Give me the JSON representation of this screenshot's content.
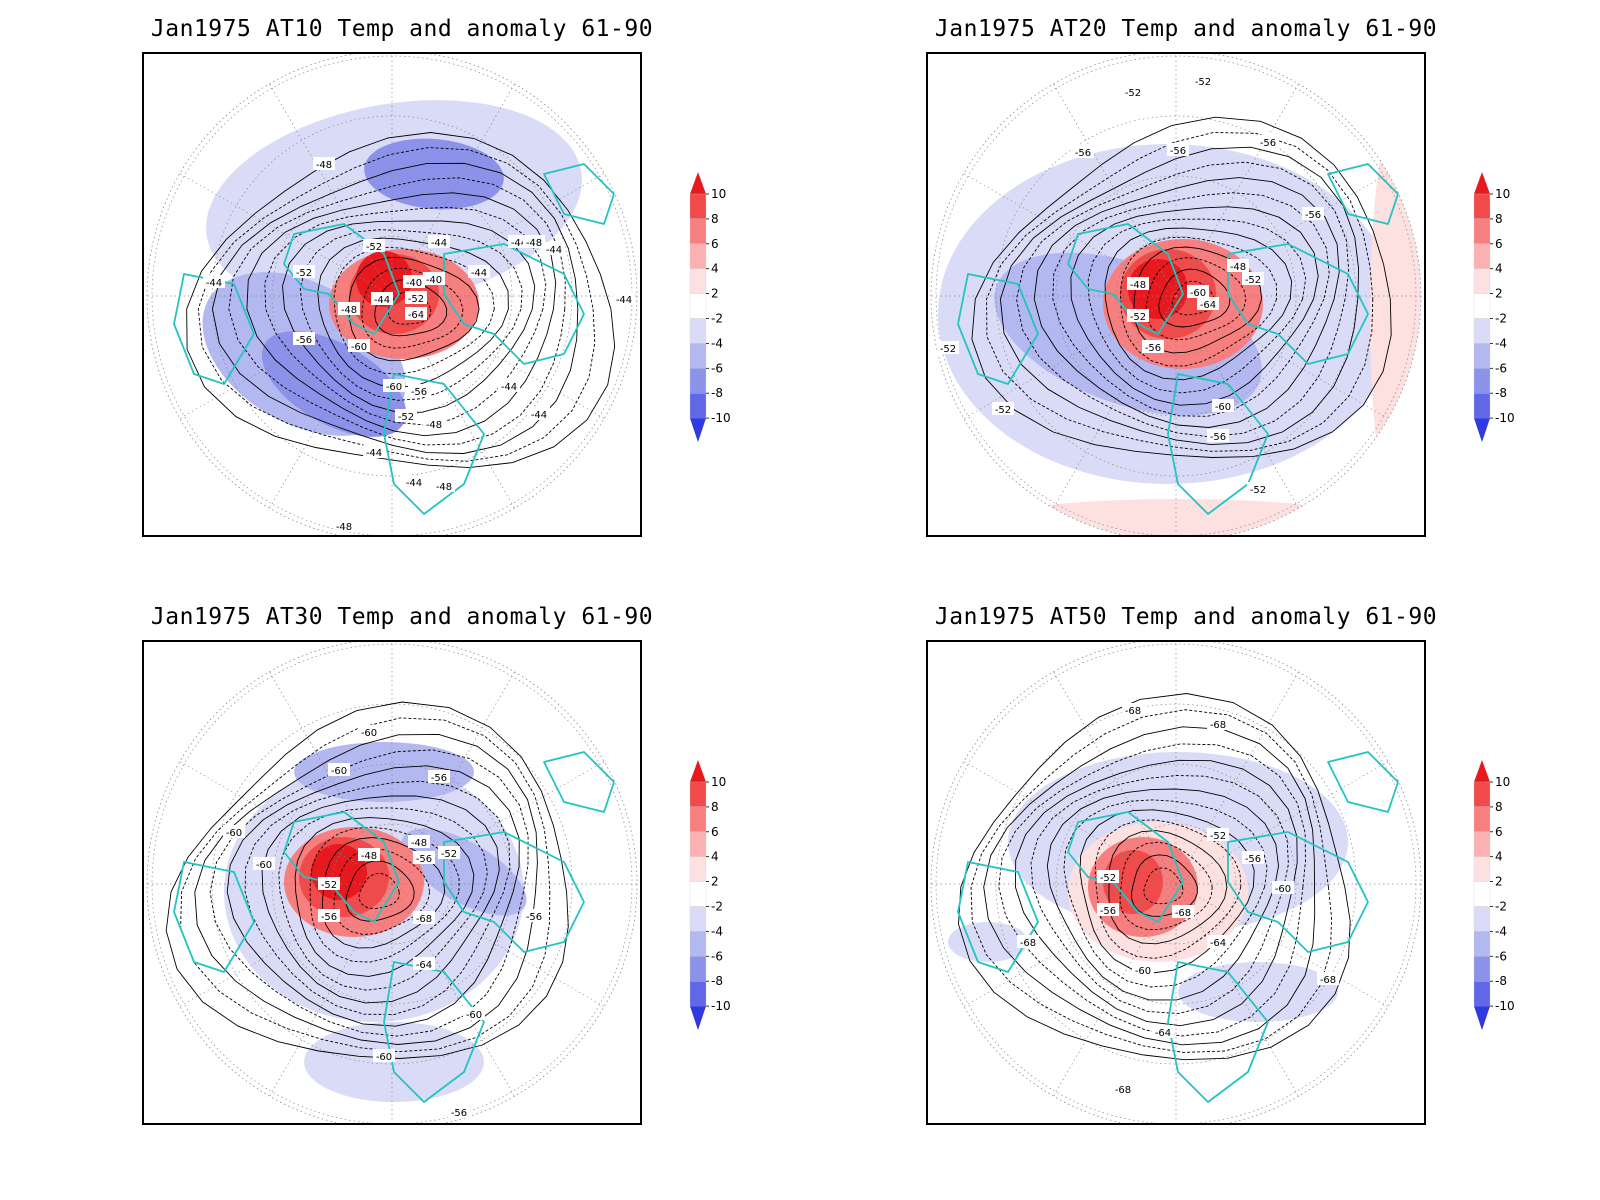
{
  "panels": [
    {
      "title": "Jan1975 AT10 Temp and anomaly 61-90",
      "contour_labels": [
        "-48",
        "-52",
        "-52",
        "-44",
        "-44",
        "-40",
        "-40",
        "-48",
        "-44",
        "-52",
        "-64",
        "-56",
        "-60",
        "-60",
        "-56",
        "-52",
        "-48",
        "-44",
        "-44",
        "-44",
        "-44",
        "-48",
        "-44",
        "-44",
        "-48",
        "-44",
        "-44",
        "-48"
      ]
    },
    {
      "title": "Jan1975 AT20 Temp and anomaly 61-90",
      "contour_labels": [
        "-52",
        "-52",
        "-56",
        "-56",
        "-56",
        "-56",
        "-48",
        "-52",
        "-48",
        "-60",
        "-64",
        "-52",
        "-56",
        "-60",
        "-56",
        "-52",
        "-52",
        "-52"
      ]
    },
    {
      "title": "Jan1975 AT30 Temp and anomaly 61-90",
      "contour_labels": [
        "-60",
        "-60",
        "-60",
        "-56",
        "-48",
        "-48",
        "-56",
        "-52",
        "-60",
        "-52",
        "-56",
        "-68",
        "-64",
        "-56",
        "-60",
        "-60",
        "-56"
      ]
    },
    {
      "title": "Jan1975 AT50 Temp and anomaly 61-90",
      "contour_labels": [
        "-68",
        "-68",
        "-52",
        "-52",
        "-56",
        "-60",
        "-56",
        "-68",
        "-64",
        "-60",
        "-68",
        "-68",
        "-64",
        "-68"
      ]
    }
  ],
  "colorbar": {
    "labels": [
      "10",
      "8",
      "6",
      "4",
      "2",
      "-2",
      "-4",
      "-6",
      "-8",
      "-10"
    ],
    "colors": [
      "#e8191e",
      "#f04a4a",
      "#f77f7f",
      "#fbb1b1",
      "#fde0e0",
      "#ffffff",
      "#dadcf7",
      "#b4b8f0",
      "#8c92ea",
      "#6068e6",
      "#2f3ae0"
    ]
  },
  "colors": {
    "coastline": "#22c4c0",
    "positive_anomaly": "#e8191e",
    "negative_anomaly": "#6068e6"
  }
}
